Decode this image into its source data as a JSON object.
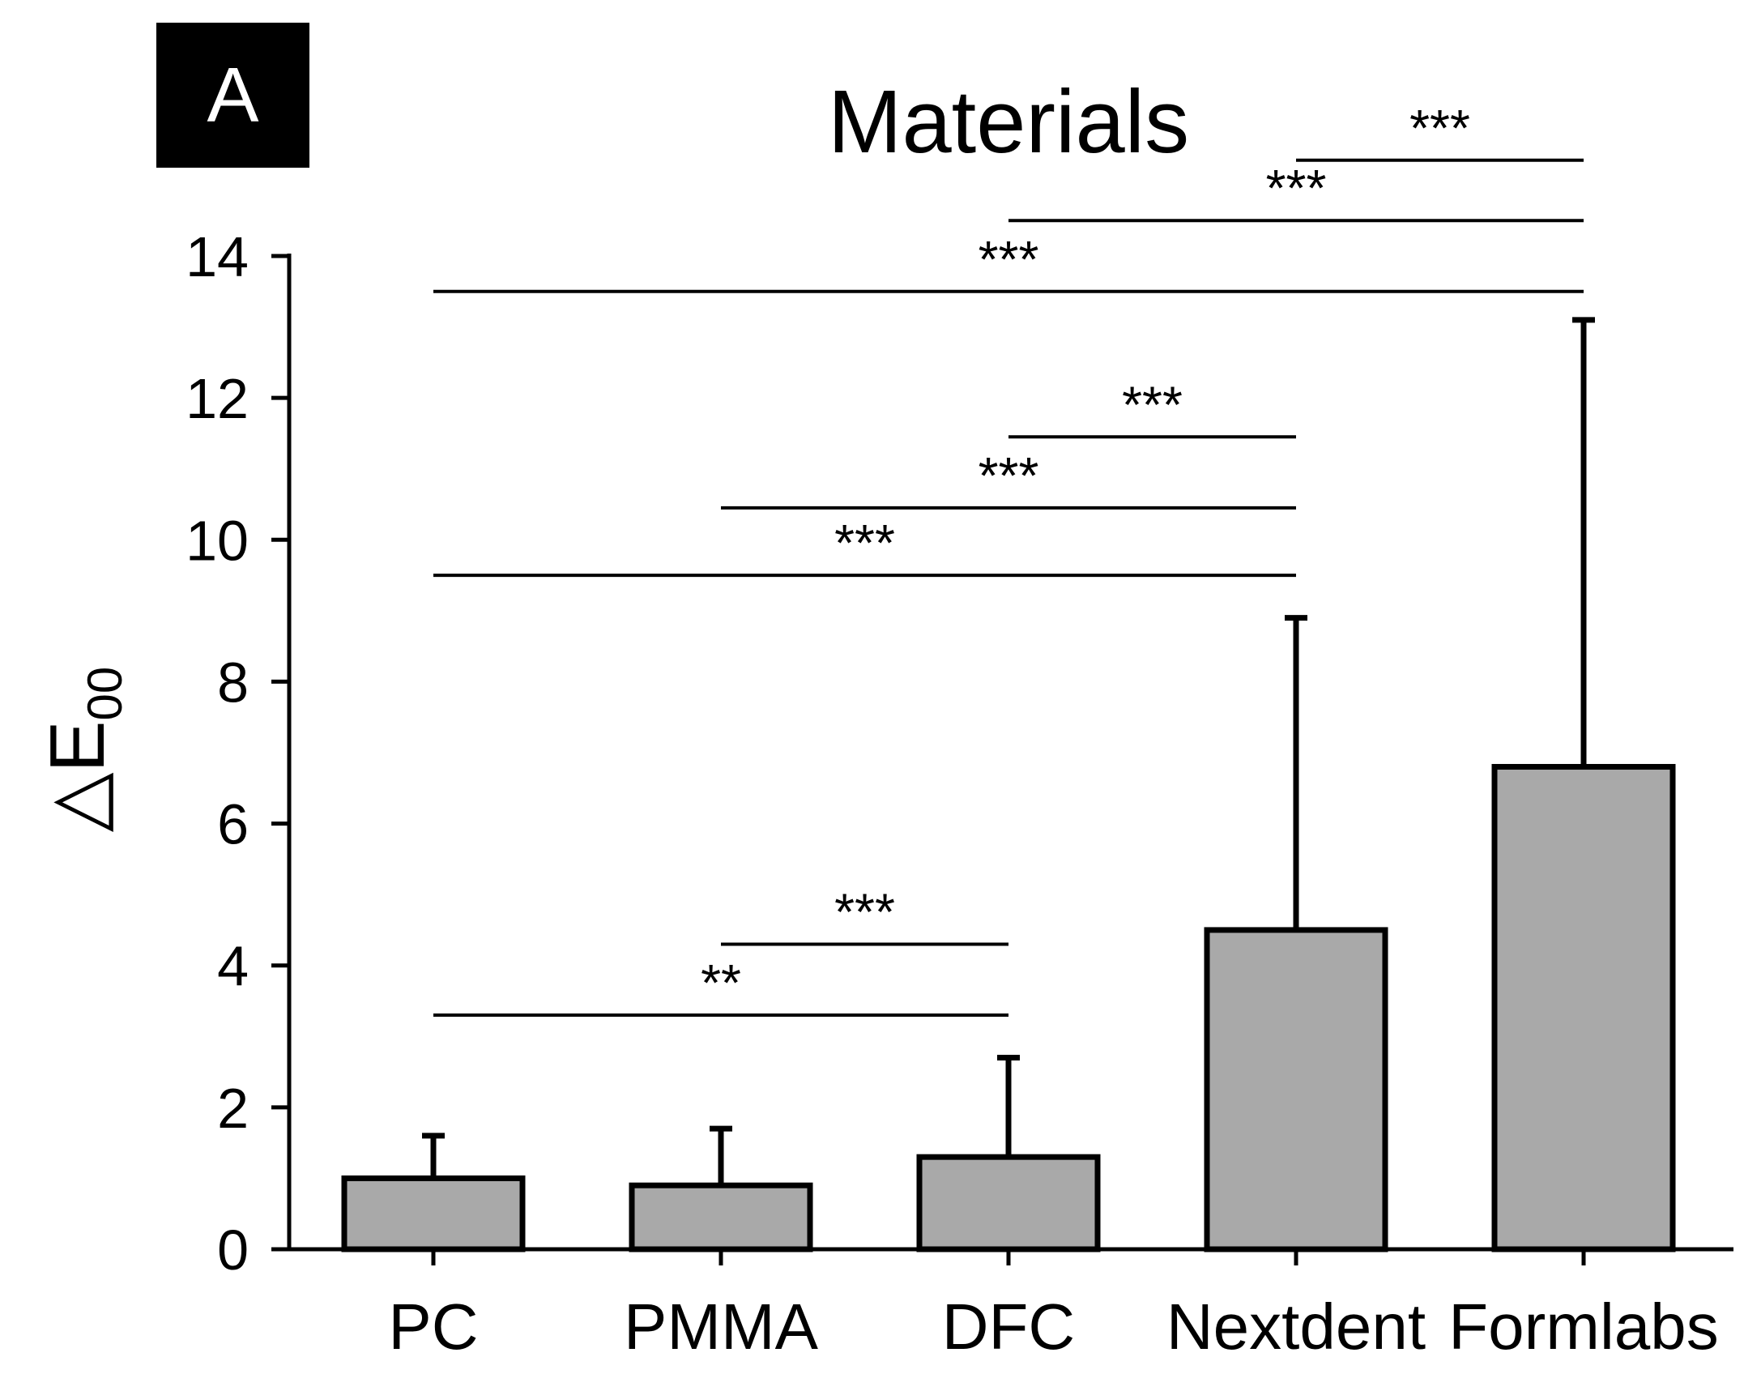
{
  "panel_label": "A",
  "chart_data": {
    "type": "bar",
    "title": "Materials",
    "ylabel": "△E00",
    "ylabel_main": "△E",
    "ylabel_sub": "00",
    "xlabel": "",
    "categories": [
      "PC",
      "PMMA",
      "DFC",
      "Nextdent",
      "Formlabs"
    ],
    "values": [
      1.0,
      0.9,
      1.3,
      4.5,
      6.8
    ],
    "error_upper": [
      0.6,
      0.8,
      1.4,
      4.4,
      6.3
    ],
    "ylim": [
      0,
      14
    ],
    "yticks": [
      0,
      2,
      4,
      6,
      8,
      10,
      12,
      14
    ],
    "ytick_labels": [
      "0",
      "2",
      "4",
      "6",
      "8",
      "10",
      "12",
      "14"
    ],
    "grid": false,
    "legend": "none",
    "bar_color": "#a9a9a9",
    "significance": [
      {
        "from": "PC",
        "to": "DFC",
        "level": 3.3,
        "label": "**"
      },
      {
        "from": "PMMA",
        "to": "DFC",
        "level": 4.3,
        "label": "***"
      },
      {
        "from": "PC",
        "to": "Nextdent",
        "level": 9.5,
        "label": "***"
      },
      {
        "from": "PMMA",
        "to": "Nextdent",
        "level": 10.45,
        "label": "***"
      },
      {
        "from": "DFC",
        "to": "Nextdent",
        "level": 11.45,
        "label": "***"
      },
      {
        "from": "PC",
        "to": "Formlabs",
        "level": 13.5,
        "label": "***"
      },
      {
        "from": "DFC",
        "to": "Formlabs",
        "level": 14.5,
        "label": "***"
      },
      {
        "from": "Nextdent",
        "to": "Formlabs",
        "level": 15.35,
        "label": "***"
      }
    ]
  }
}
